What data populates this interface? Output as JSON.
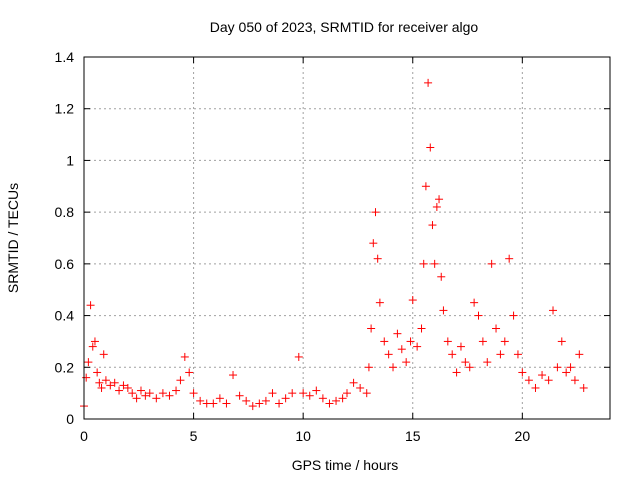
{
  "chart_data": {
    "type": "scatter",
    "title": "Day 050 of 2023, SRMTID for receiver algo",
    "xlabel": "GPS time / hours",
    "ylabel": "SRMTID / TECUs",
    "xlim": [
      0,
      24
    ],
    "ylim": [
      0,
      1.4
    ],
    "xticks": [
      0,
      5,
      10,
      15,
      20
    ],
    "xtick_labels": [
      "0",
      "5",
      "10",
      "15",
      "20"
    ],
    "yticks": [
      0,
      0.2,
      0.4,
      0.6,
      0.8,
      1,
      1.2,
      1.4
    ],
    "ytick_labels": [
      "0",
      "0.2",
      "0.4",
      "0.6",
      "0.8",
      "1",
      "1.2",
      "1.4"
    ],
    "grid": true,
    "marker": "plus",
    "series": [
      {
        "name": "SRMTID",
        "color": "#ff0000",
        "x": [
          0.0,
          0.1,
          0.2,
          0.3,
          0.4,
          0.5,
          0.6,
          0.7,
          0.8,
          0.9,
          1.0,
          1.2,
          1.4,
          1.6,
          1.8,
          2.0,
          2.2,
          2.4,
          2.6,
          2.8,
          3.0,
          3.3,
          3.6,
          3.9,
          4.2,
          4.4,
          4.6,
          4.8,
          5.0,
          5.3,
          5.6,
          5.9,
          6.2,
          6.5,
          6.8,
          7.1,
          7.4,
          7.7,
          8.0,
          8.3,
          8.6,
          8.9,
          9.2,
          9.5,
          9.8,
          10.0,
          10.3,
          10.6,
          10.9,
          11.2,
          11.5,
          11.8,
          12.0,
          12.3,
          12.6,
          12.9,
          13.0,
          13.1,
          13.2,
          13.3,
          13.4,
          13.5,
          13.7,
          13.9,
          14.1,
          14.3,
          14.5,
          14.7,
          14.9,
          15.0,
          15.2,
          15.4,
          15.5,
          15.6,
          15.7,
          15.8,
          15.9,
          16.0,
          16.1,
          16.2,
          16.3,
          16.4,
          16.6,
          16.8,
          17.0,
          17.2,
          17.4,
          17.6,
          17.8,
          18.0,
          18.2,
          18.4,
          18.6,
          18.8,
          19.0,
          19.2,
          19.4,
          19.6,
          19.8,
          20.0,
          20.3,
          20.6,
          20.9,
          21.2,
          21.4,
          21.6,
          21.8,
          22.0,
          22.2,
          22.4,
          22.6,
          22.8
        ],
        "y": [
          0.05,
          0.16,
          0.22,
          0.44,
          0.28,
          0.3,
          0.18,
          0.14,
          0.12,
          0.25,
          0.15,
          0.13,
          0.14,
          0.11,
          0.13,
          0.12,
          0.1,
          0.08,
          0.11,
          0.09,
          0.1,
          0.08,
          0.1,
          0.09,
          0.11,
          0.15,
          0.24,
          0.18,
          0.1,
          0.07,
          0.06,
          0.06,
          0.08,
          0.06,
          0.17,
          0.09,
          0.07,
          0.05,
          0.06,
          0.07,
          0.1,
          0.06,
          0.08,
          0.1,
          0.24,
          0.1,
          0.09,
          0.11,
          0.08,
          0.06,
          0.07,
          0.08,
          0.1,
          0.14,
          0.12,
          0.1,
          0.2,
          0.35,
          0.68,
          0.8,
          0.62,
          0.45,
          0.3,
          0.25,
          0.2,
          0.33,
          0.27,
          0.22,
          0.3,
          0.46,
          0.28,
          0.35,
          0.6,
          0.9,
          1.3,
          1.05,
          0.75,
          0.6,
          0.82,
          0.85,
          0.55,
          0.42,
          0.3,
          0.25,
          0.18,
          0.28,
          0.22,
          0.2,
          0.45,
          0.4,
          0.3,
          0.22,
          0.6,
          0.35,
          0.25,
          0.3,
          0.62,
          0.4,
          0.25,
          0.18,
          0.15,
          0.12,
          0.17,
          0.15,
          0.42,
          0.2,
          0.3,
          0.18,
          0.2,
          0.15,
          0.25,
          0.12
        ]
      }
    ]
  }
}
